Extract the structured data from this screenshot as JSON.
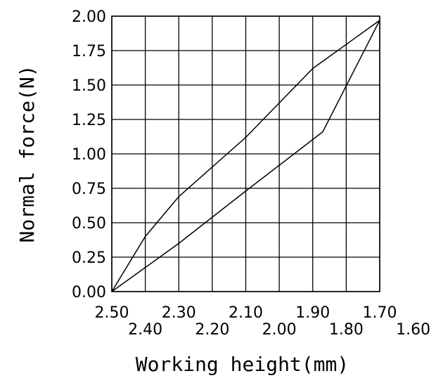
{
  "chart_data": {
    "type": "line",
    "xlabel": "Working height(mm)",
    "ylabel": "Normal force(N)",
    "xlim": [
      2.5,
      1.6
    ],
    "ylim": [
      0.0,
      2.0
    ],
    "x_ticks": [
      "2.50",
      "2.40",
      "2.30",
      "2.20",
      "2.10",
      "2.00",
      "1.90",
      "1.80",
      "1.70",
      "1.60"
    ],
    "y_ticks": [
      "0.00",
      "0.25",
      "0.50",
      "0.75",
      "1.00",
      "1.25",
      "1.50",
      "1.75",
      "2.00"
    ],
    "grid": true,
    "series": [
      {
        "x": [
          2.5,
          2.4,
          2.3,
          2.1,
          1.9,
          1.7
        ],
        "y": [
          0.0,
          0.4,
          0.69,
          1.12,
          1.62,
          1.97
        ]
      },
      {
        "x": [
          2.5,
          2.3,
          2.1,
          1.87,
          1.7
        ],
        "y": [
          0.0,
          0.35,
          0.73,
          1.16,
          1.97
        ]
      }
    ]
  }
}
